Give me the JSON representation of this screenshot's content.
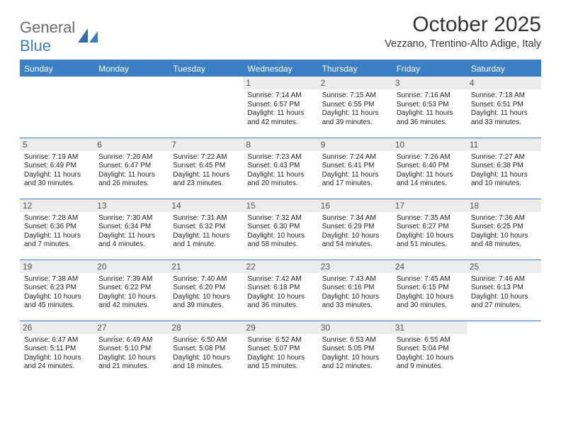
{
  "logo": {
    "text_gray": "General",
    "text_blue": "Blue"
  },
  "title": "October 2025",
  "subtitle": "Vezzano, Trentino-Alto Adige, Italy",
  "colors": {
    "brand_blue": "#3b7fc4",
    "header_text": "#ffffff",
    "day_strip_bg": "#ececec",
    "body_text": "#222222",
    "page_bg": "#ffffff"
  },
  "weekday_headers": [
    "Sunday",
    "Monday",
    "Tuesday",
    "Wednesday",
    "Thursday",
    "Friday",
    "Saturday"
  ],
  "weeks": [
    [
      null,
      null,
      null,
      {
        "n": "1",
        "sr": "Sunrise: 7:14 AM",
        "ss": "Sunset: 6:57 PM",
        "dl": "Daylight: 11 hours and 42 minutes."
      },
      {
        "n": "2",
        "sr": "Sunrise: 7:15 AM",
        "ss": "Sunset: 6:55 PM",
        "dl": "Daylight: 11 hours and 39 minutes."
      },
      {
        "n": "3",
        "sr": "Sunrise: 7:16 AM",
        "ss": "Sunset: 6:53 PM",
        "dl": "Daylight: 11 hours and 36 minutes."
      },
      {
        "n": "4",
        "sr": "Sunrise: 7:18 AM",
        "ss": "Sunset: 6:51 PM",
        "dl": "Daylight: 11 hours and 33 minutes."
      }
    ],
    [
      {
        "n": "5",
        "sr": "Sunrise: 7:19 AM",
        "ss": "Sunset: 6:49 PM",
        "dl": "Daylight: 11 hours and 30 minutes."
      },
      {
        "n": "6",
        "sr": "Sunrise: 7:20 AM",
        "ss": "Sunset: 6:47 PM",
        "dl": "Daylight: 11 hours and 26 minutes."
      },
      {
        "n": "7",
        "sr": "Sunrise: 7:22 AM",
        "ss": "Sunset: 6:45 PM",
        "dl": "Daylight: 11 hours and 23 minutes."
      },
      {
        "n": "8",
        "sr": "Sunrise: 7:23 AM",
        "ss": "Sunset: 6:43 PM",
        "dl": "Daylight: 11 hours and 20 minutes."
      },
      {
        "n": "9",
        "sr": "Sunrise: 7:24 AM",
        "ss": "Sunset: 6:41 PM",
        "dl": "Daylight: 11 hours and 17 minutes."
      },
      {
        "n": "10",
        "sr": "Sunrise: 7:26 AM",
        "ss": "Sunset: 6:40 PM",
        "dl": "Daylight: 11 hours and 14 minutes."
      },
      {
        "n": "11",
        "sr": "Sunrise: 7:27 AM",
        "ss": "Sunset: 6:38 PM",
        "dl": "Daylight: 11 hours and 10 minutes."
      }
    ],
    [
      {
        "n": "12",
        "sr": "Sunrise: 7:28 AM",
        "ss": "Sunset: 6:36 PM",
        "dl": "Daylight: 11 hours and 7 minutes."
      },
      {
        "n": "13",
        "sr": "Sunrise: 7:30 AM",
        "ss": "Sunset: 6:34 PM",
        "dl": "Daylight: 11 hours and 4 minutes."
      },
      {
        "n": "14",
        "sr": "Sunrise: 7:31 AM",
        "ss": "Sunset: 6:32 PM",
        "dl": "Daylight: 11 hours and 1 minute."
      },
      {
        "n": "15",
        "sr": "Sunrise: 7:32 AM",
        "ss": "Sunset: 6:30 PM",
        "dl": "Daylight: 10 hours and 58 minutes."
      },
      {
        "n": "16",
        "sr": "Sunrise: 7:34 AM",
        "ss": "Sunset: 6:29 PM",
        "dl": "Daylight: 10 hours and 54 minutes."
      },
      {
        "n": "17",
        "sr": "Sunrise: 7:35 AM",
        "ss": "Sunset: 6:27 PM",
        "dl": "Daylight: 10 hours and 51 minutes."
      },
      {
        "n": "18",
        "sr": "Sunrise: 7:36 AM",
        "ss": "Sunset: 6:25 PM",
        "dl": "Daylight: 10 hours and 48 minutes."
      }
    ],
    [
      {
        "n": "19",
        "sr": "Sunrise: 7:38 AM",
        "ss": "Sunset: 6:23 PM",
        "dl": "Daylight: 10 hours and 45 minutes."
      },
      {
        "n": "20",
        "sr": "Sunrise: 7:39 AM",
        "ss": "Sunset: 6:22 PM",
        "dl": "Daylight: 10 hours and 42 minutes."
      },
      {
        "n": "21",
        "sr": "Sunrise: 7:40 AM",
        "ss": "Sunset: 6:20 PM",
        "dl": "Daylight: 10 hours and 39 minutes."
      },
      {
        "n": "22",
        "sr": "Sunrise: 7:42 AM",
        "ss": "Sunset: 6:18 PM",
        "dl": "Daylight: 10 hours and 36 minutes."
      },
      {
        "n": "23",
        "sr": "Sunrise: 7:43 AM",
        "ss": "Sunset: 6:16 PM",
        "dl": "Daylight: 10 hours and 33 minutes."
      },
      {
        "n": "24",
        "sr": "Sunrise: 7:45 AM",
        "ss": "Sunset: 6:15 PM",
        "dl": "Daylight: 10 hours and 30 minutes."
      },
      {
        "n": "25",
        "sr": "Sunrise: 7:46 AM",
        "ss": "Sunset: 6:13 PM",
        "dl": "Daylight: 10 hours and 27 minutes."
      }
    ],
    [
      {
        "n": "26",
        "sr": "Sunrise: 6:47 AM",
        "ss": "Sunset: 5:11 PM",
        "dl": "Daylight: 10 hours and 24 minutes."
      },
      {
        "n": "27",
        "sr": "Sunrise: 6:49 AM",
        "ss": "Sunset: 5:10 PM",
        "dl": "Daylight: 10 hours and 21 minutes."
      },
      {
        "n": "28",
        "sr": "Sunrise: 6:50 AM",
        "ss": "Sunset: 5:08 PM",
        "dl": "Daylight: 10 hours and 18 minutes."
      },
      {
        "n": "29",
        "sr": "Sunrise: 6:52 AM",
        "ss": "Sunset: 5:07 PM",
        "dl": "Daylight: 10 hours and 15 minutes."
      },
      {
        "n": "30",
        "sr": "Sunrise: 6:53 AM",
        "ss": "Sunset: 5:05 PM",
        "dl": "Daylight: 10 hours and 12 minutes."
      },
      {
        "n": "31",
        "sr": "Sunrise: 6:55 AM",
        "ss": "Sunset: 5:04 PM",
        "dl": "Daylight: 10 hours and 9 minutes."
      },
      null
    ]
  ]
}
